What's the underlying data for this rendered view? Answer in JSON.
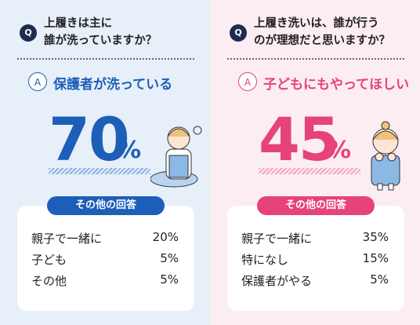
{
  "panels": [
    {
      "q_badge": "Q",
      "question": [
        "上履きは主に",
        "誰が洗っていますか？"
      ],
      "a_badge": "A",
      "answer": "保護者が洗っている",
      "big_value": "70",
      "big_unit": "%",
      "other_label": "その他の回答",
      "others": [
        [
          "親子で一緒に",
          "20%"
        ],
        [
          "子ども",
          "5%"
        ],
        [
          "その他",
          "5%"
        ]
      ]
    },
    {
      "q_badge": "Q",
      "question": [
        "上履き洗いは、誰が行う",
        "のが理想だと思いますか？"
      ],
      "a_badge": "A",
      "answer": "子どもにもやってほしい",
      "big_value": "45",
      "big_unit": "%",
      "other_label": "その他の回答",
      "others": [
        [
          "親子で一緒に",
          "35%"
        ],
        [
          "特になし",
          "15%"
        ],
        [
          "保護者がやる",
          "5%"
        ]
      ]
    }
  ]
}
